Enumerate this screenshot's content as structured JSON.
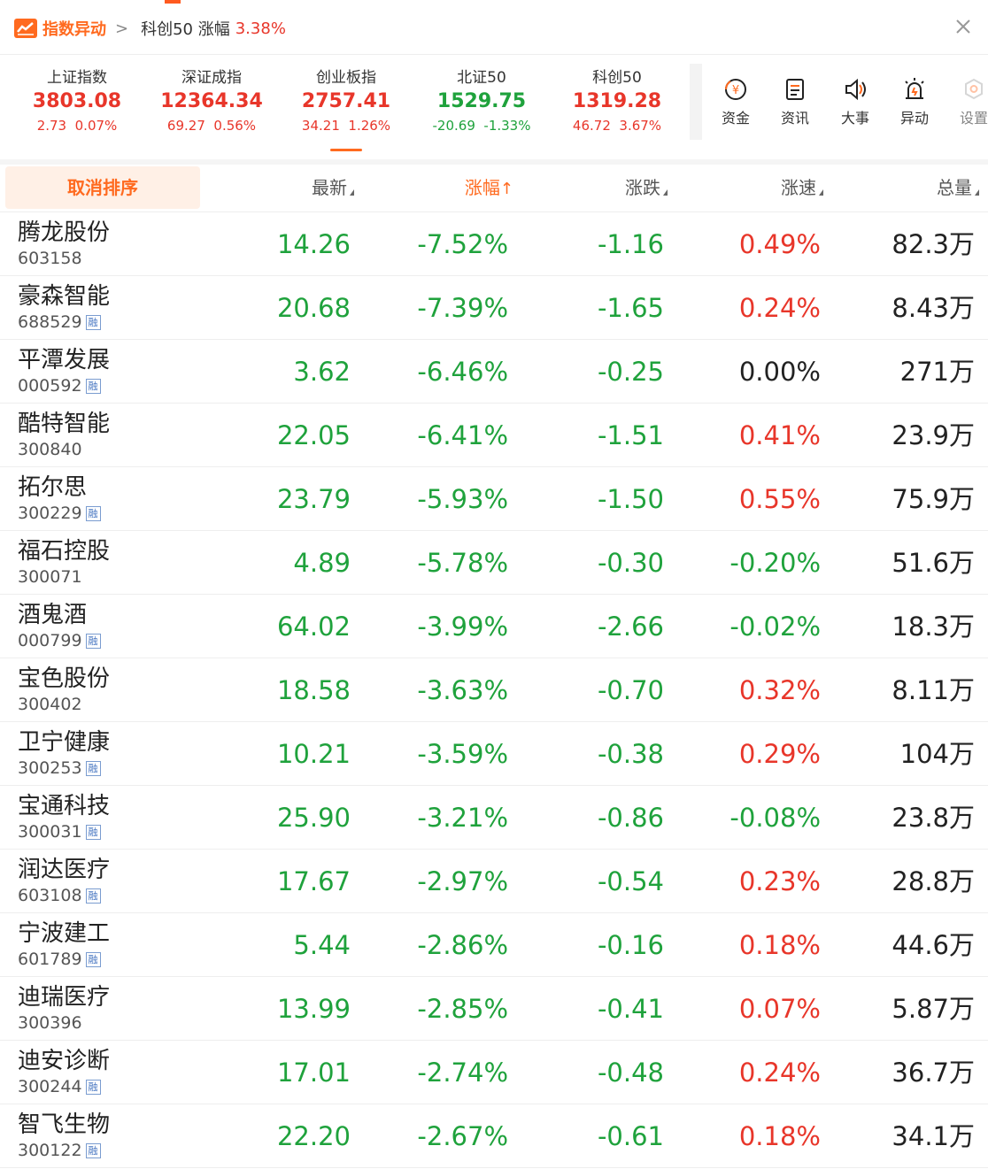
{
  "header": {
    "title": "指数异动",
    "chevron": ">",
    "subtitle": "科创50 涨幅",
    "subtitle_pct": "3.38%",
    "close_icon": "close-icon"
  },
  "indices": [
    {
      "name": "上证指数",
      "value": "3803.08",
      "change": "2.73  0.07%",
      "direction": "up"
    },
    {
      "name": "深证成指",
      "value": "12364.34",
      "change": "69.27  0.56%",
      "direction": "up"
    },
    {
      "name": "创业板指",
      "value": "2757.41",
      "change": "34.21  1.26%",
      "direction": "up",
      "selected": true
    },
    {
      "name": "北证50",
      "value": "1529.75",
      "change": "-20.69  -1.33%",
      "direction": "down"
    },
    {
      "name": "科创50",
      "value": "1319.28",
      "change": "46.72  3.67%",
      "direction": "up"
    }
  ],
  "tools": [
    {
      "label": "资金",
      "icon": "fund-icon"
    },
    {
      "label": "资讯",
      "icon": "news-icon"
    },
    {
      "label": "大事",
      "icon": "speaker-icon"
    },
    {
      "label": "异动",
      "icon": "alarm-icon"
    },
    {
      "label": "设置",
      "icon": "settings-icon"
    }
  ],
  "table": {
    "cancel_sort": "取消排序",
    "columns": [
      "最新",
      "涨幅",
      "涨跌",
      "涨速",
      "总量"
    ],
    "sorted_column": "涨幅",
    "sort_arrow": "↑",
    "rows": [
      {
        "name": "腾龙股份",
        "code": "603158",
        "rong": false,
        "price": "14.26",
        "pct": "-7.52%",
        "chg": "-1.16",
        "speed": "0.49%",
        "speed_dir": "up",
        "vol": "82.3万"
      },
      {
        "name": "豪森智能",
        "code": "688529",
        "rong": true,
        "price": "20.68",
        "pct": "-7.39%",
        "chg": "-1.65",
        "speed": "0.24%",
        "speed_dir": "up",
        "vol": "8.43万"
      },
      {
        "name": "平潭发展",
        "code": "000592",
        "rong": true,
        "price": "3.62",
        "pct": "-6.46%",
        "chg": "-0.25",
        "speed": "0.00%",
        "speed_dir": "flat",
        "vol": "271万"
      },
      {
        "name": "酷特智能",
        "code": "300840",
        "rong": false,
        "price": "22.05",
        "pct": "-6.41%",
        "chg": "-1.51",
        "speed": "0.41%",
        "speed_dir": "up",
        "vol": "23.9万"
      },
      {
        "name": "拓尔思",
        "code": "300229",
        "rong": true,
        "price": "23.79",
        "pct": "-5.93%",
        "chg": "-1.50",
        "speed": "0.55%",
        "speed_dir": "up",
        "vol": "75.9万"
      },
      {
        "name": "福石控股",
        "code": "300071",
        "rong": false,
        "price": "4.89",
        "pct": "-5.78%",
        "chg": "-0.30",
        "speed": "-0.20%",
        "speed_dir": "down",
        "vol": "51.6万"
      },
      {
        "name": "酒鬼酒",
        "code": "000799",
        "rong": true,
        "price": "64.02",
        "pct": "-3.99%",
        "chg": "-2.66",
        "speed": "-0.02%",
        "speed_dir": "down",
        "vol": "18.3万"
      },
      {
        "name": "宝色股份",
        "code": "300402",
        "rong": false,
        "price": "18.58",
        "pct": "-3.63%",
        "chg": "-0.70",
        "speed": "0.32%",
        "speed_dir": "up",
        "vol": "8.11万"
      },
      {
        "name": "卫宁健康",
        "code": "300253",
        "rong": true,
        "price": "10.21",
        "pct": "-3.59%",
        "chg": "-0.38",
        "speed": "0.29%",
        "speed_dir": "up",
        "vol": "104万"
      },
      {
        "name": "宝通科技",
        "code": "300031",
        "rong": true,
        "price": "25.90",
        "pct": "-3.21%",
        "chg": "-0.86",
        "speed": "-0.08%",
        "speed_dir": "down",
        "vol": "23.8万"
      },
      {
        "name": "润达医疗",
        "code": "603108",
        "rong": true,
        "price": "17.67",
        "pct": "-2.97%",
        "chg": "-0.54",
        "speed": "0.23%",
        "speed_dir": "up",
        "vol": "28.8万"
      },
      {
        "name": "宁波建工",
        "code": "601789",
        "rong": true,
        "price": "5.44",
        "pct": "-2.86%",
        "chg": "-0.16",
        "speed": "0.18%",
        "speed_dir": "up",
        "vol": "44.6万"
      },
      {
        "name": "迪瑞医疗",
        "code": "300396",
        "rong": false,
        "price": "13.99",
        "pct": "-2.85%",
        "chg": "-0.41",
        "speed": "0.07%",
        "speed_dir": "up",
        "vol": "5.87万"
      },
      {
        "name": "迪安诊断",
        "code": "300244",
        "rong": true,
        "price": "17.01",
        "pct": "-2.74%",
        "chg": "-0.48",
        "speed": "0.24%",
        "speed_dir": "up",
        "vol": "36.7万"
      },
      {
        "name": "智飞生物",
        "code": "300122",
        "rong": true,
        "price": "22.20",
        "pct": "-2.67%",
        "chg": "-0.61",
        "speed": "0.18%",
        "speed_dir": "up",
        "vol": "34.1万"
      }
    ],
    "rong_label": "融"
  },
  "colors": {
    "up": "#e8362a",
    "down": "#1fa23c",
    "accent": "#ff6a1f"
  }
}
